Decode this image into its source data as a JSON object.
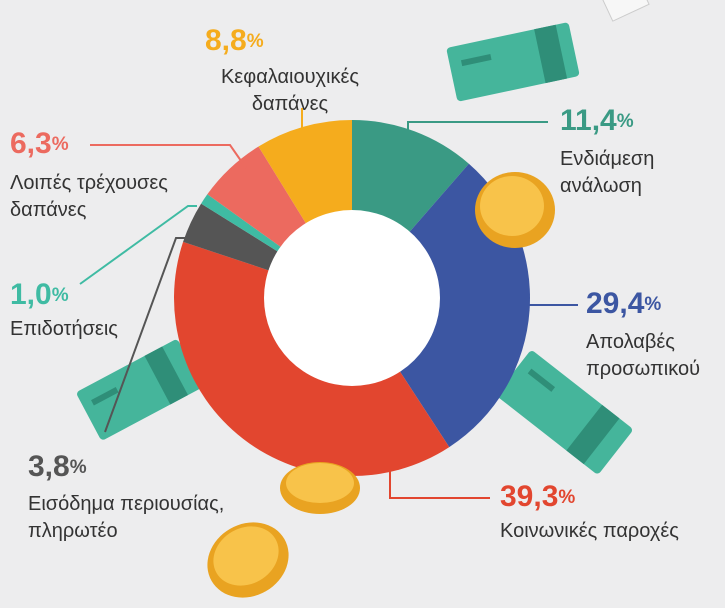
{
  "chart_data": {
    "type": "donut",
    "categories": [
      "Ενδιάμεση\nανάλωση",
      "Απολαβές\nπροσωπικού",
      "Κοινωνικές παροχές",
      "Εισόδημα περιουσίας,\nπληρωτέο",
      "Επιδοτήσεις",
      "Λοιπές τρέχουσες\nδαπάνες",
      "Κεφαλαιουχικές\nδαπάνες"
    ],
    "values": [
      11.4,
      29.4,
      39.3,
      3.8,
      1.0,
      6.3,
      8.8
    ],
    "value_labels": [
      "11,4%",
      "29,4%",
      "39,3%",
      "3,8%",
      "1,0%",
      "6,3%",
      "8,8%"
    ],
    "colors": [
      "#3a9a84",
      "#3c56a2",
      "#e2462f",
      "#555555",
      "#3fbba3",
      "#ec6a5f",
      "#f5ac1d"
    ]
  }
}
